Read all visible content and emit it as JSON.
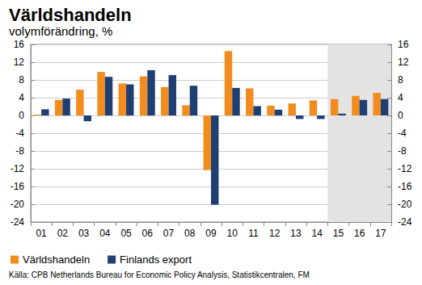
{
  "chart_data": {
    "type": "bar",
    "title": "Världshandeln",
    "subtitle": "volymförändring, %",
    "source": "Källa: CPB Netherlands Bureau for Economic Policy Analysis, Statistikcentralen, FM",
    "categories": [
      "01",
      "02",
      "03",
      "04",
      "05",
      "06",
      "07",
      "08",
      "09",
      "10",
      "11",
      "12",
      "13",
      "14",
      "15",
      "16",
      "17"
    ],
    "series": [
      {
        "name": "Världshandeln",
        "color": "#f28c1e",
        "values": [
          0.2,
          3.5,
          5.8,
          9.8,
          7.2,
          8.8,
          6.4,
          2.3,
          -12.3,
          14.5,
          6.1,
          2.2,
          2.7,
          3.4,
          3.7,
          4.4,
          5.1
        ]
      },
      {
        "name": "Finlands export",
        "color": "#1f3f73",
        "values": [
          1.4,
          3.8,
          -1.3,
          8.7,
          7.0,
          10.2,
          9.1,
          6.7,
          -20.1,
          6.2,
          2.1,
          1.3,
          -0.8,
          -0.8,
          0.4,
          3.5,
          3.7
        ]
      }
    ],
    "shaded_range": [
      "15",
      "17"
    ],
    "ylim": [
      -24,
      16
    ],
    "yticks": [
      -24,
      -20,
      -16,
      -12,
      -8,
      -4,
      0,
      4,
      8,
      12,
      16
    ],
    "y2lim": [
      -24,
      16
    ],
    "y2ticks": [
      -24,
      -20,
      -16,
      -12,
      -8,
      -4,
      0,
      4,
      8,
      12,
      16
    ],
    "grid": true,
    "legend": "lower left"
  }
}
